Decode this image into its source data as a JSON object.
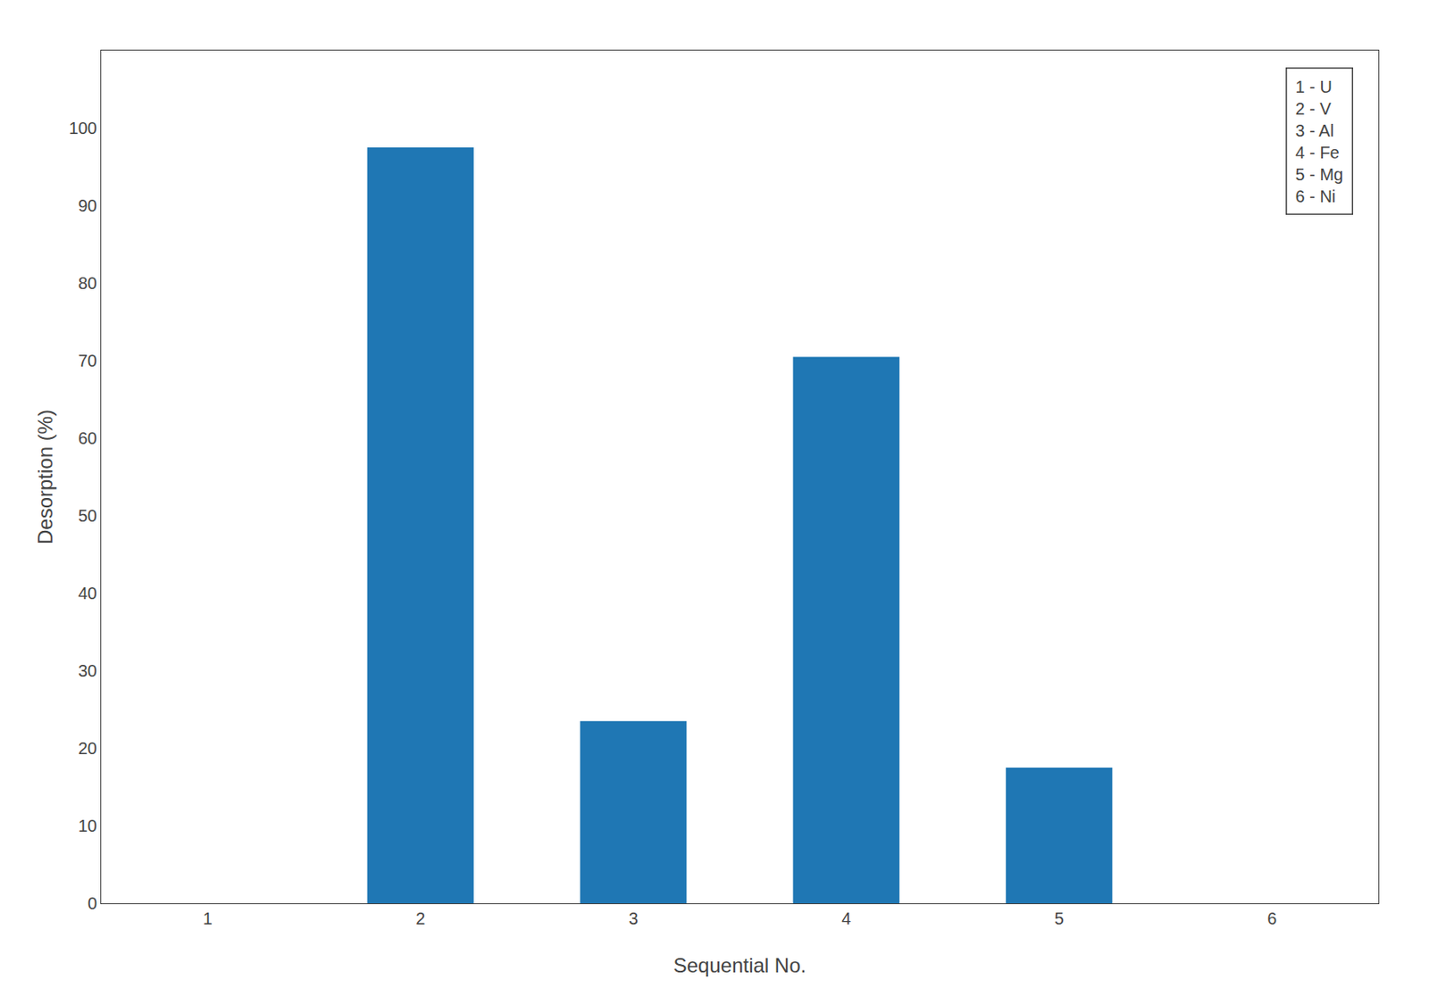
{
  "chart_data": {
    "type": "bar",
    "x": [
      1,
      2,
      3,
      4,
      5,
      6
    ],
    "values": [
      0.0,
      97.5,
      23.5,
      70.5,
      17.5,
      0.0
    ],
    "xlabel": "Sequential No.",
    "ylabel": "Desorption (%)",
    "xlim": [
      0.5,
      6.5
    ],
    "xticks": [
      1,
      2,
      3,
      4,
      5,
      6
    ],
    "ylim": [
      0,
      110
    ],
    "yticks": [
      0,
      10,
      20,
      30,
      40,
      50,
      60,
      70,
      80,
      90,
      100
    ],
    "annotations": [
      "1 - U",
      "2 - V",
      "3 - Al",
      "4 - Fe",
      "5 - Mg",
      "6 - Ni"
    ],
    "grid": false
  }
}
